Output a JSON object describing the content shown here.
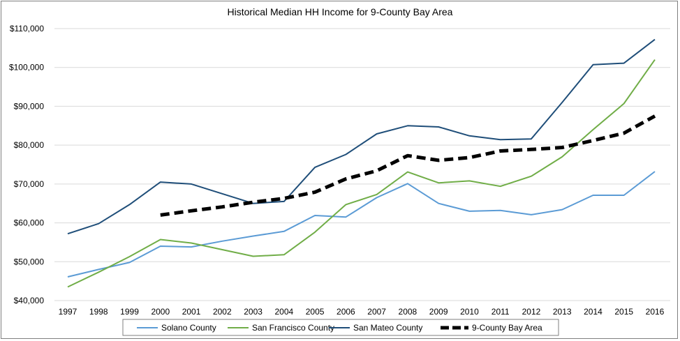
{
  "chart_data": {
    "type": "line",
    "title": "Historical Median HH Income for 9-County Bay Area",
    "xlabel": "",
    "ylabel": "",
    "categories": [
      "1997",
      "1998",
      "1999",
      "2000",
      "2001",
      "2002",
      "2003",
      "2004",
      "2005",
      "2006",
      "2007",
      "2008",
      "2009",
      "2010",
      "2011",
      "2012",
      "2013",
      "2014",
      "2015",
      "2016"
    ],
    "ylim": [
      40000,
      110000
    ],
    "yticks": [
      40000,
      50000,
      60000,
      70000,
      80000,
      90000,
      100000,
      110000
    ],
    "ytick_labels": [
      "$40,000",
      "$50,000",
      "$60,000",
      "$70,000",
      "$80,000",
      "$90,000",
      "$100,000",
      "$110,000"
    ],
    "grid": "horizontal",
    "legend_position": "bottom",
    "series": [
      {
        "name": "Solano County",
        "color": "#5b9bd5",
        "dashed": false,
        "values": [
          46100,
          48000,
          49800,
          54000,
          53800,
          55300,
          56600,
          57800,
          61900,
          61500,
          66500,
          70100,
          65000,
          63000,
          63200,
          62100,
          63400,
          67100,
          67100,
          73200
        ]
      },
      {
        "name": "San Francisco County",
        "color": "#70ad47",
        "dashed": false,
        "values": [
          43500,
          47300,
          51300,
          55700,
          54800,
          53100,
          51400,
          51800,
          57600,
          64700,
          67300,
          73100,
          70300,
          70800,
          69400,
          72000,
          77000,
          84000,
          90700,
          102000
        ]
      },
      {
        "name": "San Mateo County",
        "color": "#1f4e79",
        "dashed": false,
        "values": [
          57200,
          59800,
          64700,
          70500,
          70000,
          67500,
          65000,
          65500,
          74300,
          77600,
          82900,
          85000,
          84700,
          82400,
          81400,
          81600,
          91000,
          100700,
          101100,
          107200
        ]
      },
      {
        "name": "9-County Bay Area",
        "color": "#000000",
        "dashed": true,
        "values": [
          null,
          null,
          null,
          62000,
          63100,
          64100,
          65300,
          66300,
          67900,
          71300,
          73400,
          77300,
          76100,
          76800,
          78500,
          78900,
          79400,
          81200,
          83100,
          87500
        ]
      }
    ]
  }
}
